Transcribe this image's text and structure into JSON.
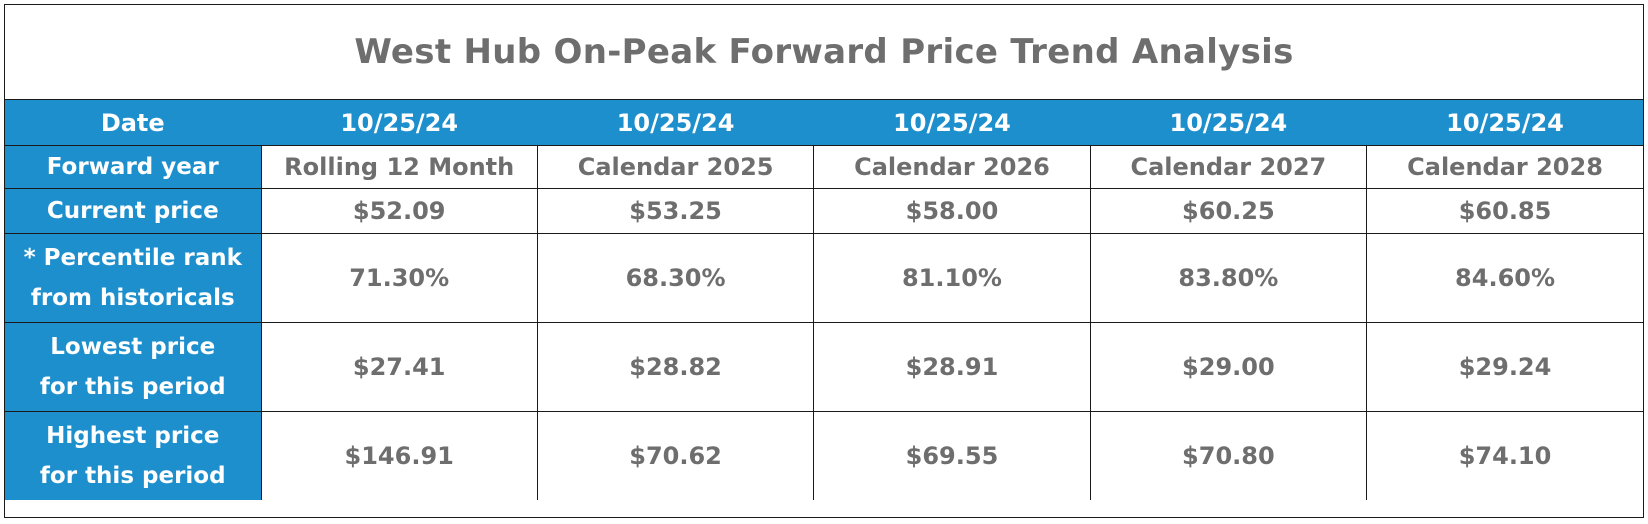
{
  "title": "West Hub On-Peak Forward Price Trend Analysis",
  "row_labels": {
    "date": "Date",
    "forward_year": "Forward year",
    "current_price": "Current price",
    "percentile_line1": "* Percentile rank",
    "percentile_line2": "from historicals",
    "lowest_line1": "Lowest price",
    "lowest_line2": "for this period",
    "highest_line1": "Highest price",
    "highest_line2": "for this period"
  },
  "columns": [
    {
      "date": "10/25/24",
      "forward_year": "Rolling 12 Month",
      "current_price": "$52.09",
      "percentile_rank": "71.30%",
      "lowest_price": "$27.41",
      "highest_price": "$146.91"
    },
    {
      "date": "10/25/24",
      "forward_year": "Calendar 2025",
      "current_price": "$53.25",
      "percentile_rank": "68.30%",
      "lowest_price": "$28.82",
      "highest_price": "$70.62"
    },
    {
      "date": "10/25/24",
      "forward_year": "Calendar 2026",
      "current_price": "$58.00",
      "percentile_rank": "81.10%",
      "lowest_price": "$28.91",
      "highest_price": "$69.55"
    },
    {
      "date": "10/25/24",
      "forward_year": "Calendar 2027",
      "current_price": "$60.25",
      "percentile_rank": "83.80%",
      "lowest_price": "$29.00",
      "highest_price": "$70.80"
    },
    {
      "date": "10/25/24",
      "forward_year": "Calendar 2028",
      "current_price": "$60.85",
      "percentile_rank": "84.60%",
      "lowest_price": "$29.24",
      "highest_price": "$74.10"
    }
  ],
  "colors": {
    "header_blue": "#1e8fcd",
    "text_gray": "#6e6e6e",
    "header_text": "#ffffff"
  }
}
